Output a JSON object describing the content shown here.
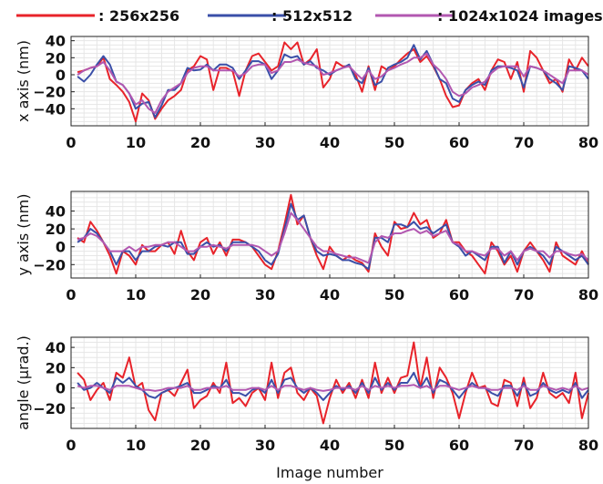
{
  "chart_data": [
    {
      "type": "line",
      "ylabel": "x axis (nm)",
      "xlim": [
        0,
        80
      ],
      "ylim": [
        -60,
        45
      ],
      "yticks": [
        -40,
        -20,
        0,
        20,
        40
      ],
      "xticks": [
        0,
        10,
        20,
        30,
        40,
        50,
        60,
        70,
        80
      ],
      "grid": true,
      "x": [
        1,
        2,
        3,
        4,
        5,
        6,
        7,
        8,
        9,
        10,
        11,
        12,
        13,
        14,
        15,
        16,
        17,
        18,
        19,
        20,
        21,
        22,
        23,
        24,
        25,
        26,
        27,
        28,
        29,
        30,
        31,
        32,
        33,
        34,
        35,
        36,
        37,
        38,
        39,
        40,
        41,
        42,
        43,
        44,
        45,
        46,
        47,
        48,
        49,
        50,
        51,
        52,
        53,
        54,
        55,
        56,
        57,
        58,
        59,
        60,
        61,
        62,
        63,
        64,
        65,
        66,
        67,
        68,
        69,
        70,
        71,
        72,
        73,
        74,
        75,
        76,
        77,
        78,
        79,
        80
      ],
      "series": [
        {
          "name": ": 256x256",
          "color": "#e8232a",
          "values": [
            3,
            5,
            8,
            10,
            20,
            -5,
            -12,
            -20,
            -32,
            -55,
            -22,
            -30,
            -52,
            -40,
            -30,
            -25,
            -18,
            5,
            10,
            22,
            18,
            -18,
            8,
            8,
            4,
            -25,
            5,
            22,
            25,
            15,
            5,
            10,
            38,
            30,
            38,
            12,
            18,
            30,
            -15,
            -5,
            15,
            10,
            10,
            0,
            -20,
            10,
            -18,
            10,
            5,
            10,
            18,
            25,
            30,
            15,
            22,
            10,
            -5,
            -25,
            -38,
            -36,
            -18,
            -10,
            -5,
            -18,
            5,
            18,
            15,
            -5,
            15,
            -20,
            28,
            20,
            5,
            -10,
            -5,
            -20,
            18,
            5,
            20,
            10
          ]
        },
        {
          "name": ": 512x512",
          "color": "#3a4fa8",
          "values": [
            -2,
            -8,
            0,
            12,
            22,
            12,
            -8,
            -12,
            -22,
            -40,
            -34,
            -32,
            -50,
            -36,
            -18,
            -18,
            -10,
            8,
            5,
            6,
            12,
            5,
            12,
            12,
            8,
            -5,
            5,
            16,
            16,
            12,
            -5,
            5,
            24,
            20,
            22,
            12,
            16,
            8,
            5,
            0,
            5,
            8,
            12,
            -5,
            -10,
            8,
            -12,
            -8,
            8,
            12,
            15,
            20,
            35,
            18,
            28,
            12,
            -5,
            -10,
            -28,
            -32,
            -18,
            -12,
            -8,
            -12,
            5,
            10,
            10,
            8,
            5,
            -15,
            10,
            8,
            5,
            -5,
            -10,
            -18,
            10,
            8,
            5,
            -5
          ]
        },
        {
          "name": ": 1024x1024 images",
          "color": "#b257b0",
          "values": [
            0,
            5,
            8,
            10,
            15,
            5,
            -8,
            -12,
            -22,
            -35,
            -30,
            -40,
            -45,
            -30,
            -20,
            -15,
            -10,
            2,
            8,
            10,
            10,
            5,
            5,
            5,
            5,
            -2,
            2,
            10,
            12,
            12,
            2,
            5,
            15,
            15,
            18,
            14,
            12,
            10,
            0,
            2,
            5,
            8,
            10,
            2,
            -5,
            5,
            -5,
            -2,
            5,
            8,
            12,
            15,
            20,
            20,
            25,
            12,
            5,
            -5,
            -20,
            -25,
            -22,
            -15,
            -12,
            -8,
            2,
            8,
            10,
            10,
            10,
            -2,
            10,
            8,
            5,
            0,
            -5,
            -10,
            5,
            5,
            5,
            0
          ]
        }
      ]
    },
    {
      "type": "line",
      "ylabel": "y axis (nm)",
      "xlim": [
        0,
        80
      ],
      "ylim": [
        -35,
        62
      ],
      "yticks": [
        -20,
        0,
        20,
        40
      ],
      "xticks": [
        0,
        10,
        20,
        30,
        40,
        50,
        60,
        70,
        80
      ],
      "grid": true,
      "x": [
        1,
        2,
        3,
        4,
        5,
        6,
        7,
        8,
        9,
        10,
        11,
        12,
        13,
        14,
        15,
        16,
        17,
        18,
        19,
        20,
        21,
        22,
        23,
        24,
        25,
        26,
        27,
        28,
        29,
        30,
        31,
        32,
        33,
        34,
        35,
        36,
        37,
        38,
        39,
        40,
        41,
        42,
        43,
        44,
        45,
        46,
        47,
        48,
        49,
        50,
        51,
        52,
        53,
        54,
        55,
        56,
        57,
        58,
        59,
        60,
        61,
        62,
        63,
        64,
        65,
        66,
        67,
        68,
        69,
        70,
        71,
        72,
        73,
        74,
        75,
        76,
        77,
        78,
        79,
        80
      ],
      "series": [
        {
          "name": ": 256x256",
          "color": "#e8232a",
          "values": [
            10,
            5,
            28,
            18,
            5,
            -10,
            -30,
            -5,
            -10,
            -20,
            2,
            -5,
            -5,
            2,
            5,
            -8,
            18,
            -5,
            -15,
            5,
            10,
            -8,
            5,
            -10,
            8,
            8,
            5,
            0,
            -10,
            -20,
            -25,
            -5,
            25,
            58,
            25,
            35,
            10,
            -10,
            -25,
            0,
            -10,
            -15,
            -10,
            -15,
            -18,
            -28,
            15,
            0,
            -10,
            28,
            20,
            22,
            38,
            25,
            30,
            10,
            15,
            30,
            5,
            5,
            -5,
            -10,
            -20,
            -30,
            5,
            -5,
            -20,
            -10,
            -28,
            -5,
            5,
            -5,
            -15,
            -28,
            5,
            -10,
            -15,
            -20,
            -5,
            -20
          ]
        },
        {
          "name": ": 512x512",
          "color": "#3a4fa8",
          "values": [
            5,
            10,
            20,
            15,
            5,
            -5,
            -20,
            -5,
            -5,
            -15,
            -5,
            -5,
            0,
            2,
            0,
            5,
            5,
            -8,
            -8,
            0,
            5,
            0,
            2,
            -5,
            5,
            5,
            5,
            0,
            -5,
            -15,
            -20,
            -8,
            20,
            48,
            30,
            35,
            10,
            -5,
            -10,
            -8,
            -10,
            -15,
            -15,
            -18,
            -20,
            -25,
            10,
            10,
            5,
            25,
            25,
            22,
            28,
            20,
            22,
            15,
            20,
            25,
            5,
            0,
            -10,
            -5,
            -10,
            -15,
            0,
            0,
            -18,
            -5,
            -20,
            -5,
            0,
            -5,
            -10,
            -20,
            0,
            -5,
            -10,
            -15,
            -10,
            -20
          ]
        },
        {
          "name": ": 1024x1024 images",
          "color": "#b257b0",
          "values": [
            8,
            10,
            15,
            12,
            5,
            -5,
            -5,
            -5,
            0,
            -5,
            0,
            0,
            2,
            2,
            5,
            5,
            0,
            -5,
            -5,
            0,
            0,
            2,
            0,
            -2,
            2,
            2,
            2,
            2,
            0,
            -5,
            -10,
            -5,
            15,
            38,
            30,
            20,
            10,
            0,
            -5,
            -5,
            -8,
            -10,
            -12,
            -12,
            -15,
            -18,
            5,
            12,
            10,
            15,
            15,
            18,
            20,
            15,
            18,
            12,
            15,
            18,
            5,
            2,
            -5,
            -5,
            -8,
            -10,
            -2,
            -2,
            -10,
            -5,
            -15,
            -5,
            -2,
            -5,
            -5,
            -12,
            -5,
            -5,
            -8,
            -10,
            -8,
            -15
          ]
        }
      ]
    },
    {
      "type": "line",
      "ylabel": "angle (µrad.)",
      "xlabel": "Image number",
      "xlim": [
        0,
        80
      ],
      "ylim": [
        -40,
        50
      ],
      "yticks": [
        -20,
        0,
        20,
        40
      ],
      "xticks": [
        0,
        10,
        20,
        30,
        40,
        50,
        60,
        70,
        80
      ],
      "grid": true,
      "x": [
        1,
        2,
        3,
        4,
        5,
        6,
        7,
        8,
        9,
        10,
        11,
        12,
        13,
        14,
        15,
        16,
        17,
        18,
        19,
        20,
        21,
        22,
        23,
        24,
        25,
        26,
        27,
        28,
        29,
        30,
        31,
        32,
        33,
        34,
        35,
        36,
        37,
        38,
        39,
        40,
        41,
        42,
        43,
        44,
        45,
        46,
        47,
        48,
        49,
        50,
        51,
        52,
        53,
        54,
        55,
        56,
        57,
        58,
        59,
        60,
        61,
        62,
        63,
        64,
        65,
        66,
        67,
        68,
        69,
        70,
        71,
        72,
        73,
        74,
        75,
        76,
        77,
        78,
        79,
        80
      ],
      "series": [
        {
          "name": ": 256x256",
          "color": "#e8232a",
          "values": [
            15,
            8,
            -12,
            -2,
            5,
            -12,
            15,
            10,
            30,
            0,
            5,
            -22,
            -32,
            -5,
            -2,
            -8,
            5,
            18,
            -20,
            -12,
            -8,
            5,
            -5,
            25,
            -15,
            -10,
            -18,
            -5,
            0,
            -12,
            25,
            -10,
            15,
            20,
            -5,
            -12,
            0,
            -8,
            -35,
            -10,
            8,
            -5,
            5,
            -10,
            8,
            -10,
            25,
            -5,
            10,
            -5,
            10,
            12,
            45,
            0,
            30,
            -10,
            20,
            10,
            -5,
            -30,
            -5,
            15,
            0,
            2,
            -15,
            -18,
            8,
            5,
            -18,
            10,
            -20,
            -10,
            15,
            -5,
            -10,
            -5,
            -15,
            15,
            -30,
            -5
          ]
        },
        {
          "name": ": 512x512",
          "color": "#3a4fa8",
          "values": [
            5,
            -2,
            0,
            5,
            0,
            -5,
            10,
            5,
            10,
            2,
            -2,
            -8,
            -10,
            -5,
            -2,
            0,
            2,
            5,
            -5,
            -5,
            -2,
            2,
            0,
            8,
            -5,
            -5,
            -8,
            -2,
            0,
            -5,
            8,
            -5,
            8,
            10,
            0,
            -5,
            0,
            -5,
            -12,
            -5,
            2,
            -2,
            2,
            -5,
            5,
            -5,
            10,
            -2,
            5,
            -2,
            5,
            5,
            15,
            0,
            10,
            -5,
            8,
            5,
            -2,
            -10,
            -2,
            5,
            0,
            0,
            -5,
            -8,
            2,
            2,
            -8,
            5,
            -8,
            -5,
            5,
            -2,
            -5,
            -2,
            -5,
            5,
            -10,
            -2
          ]
        },
        {
          "name": ": 1024x1024 images",
          "color": "#b257b0",
          "values": [
            2,
            0,
            2,
            2,
            0,
            -2,
            2,
            2,
            2,
            0,
            -2,
            -2,
            -3,
            -2,
            0,
            0,
            0,
            2,
            -2,
            -2,
            0,
            0,
            0,
            2,
            -2,
            -2,
            -2,
            0,
            0,
            -2,
            2,
            -2,
            2,
            2,
            0,
            -2,
            0,
            -2,
            -3,
            -2,
            0,
            0,
            0,
            -2,
            2,
            -2,
            2,
            0,
            2,
            0,
            2,
            2,
            3,
            0,
            2,
            -2,
            2,
            2,
            0,
            -2,
            0,
            2,
            0,
            0,
            -2,
            -2,
            0,
            0,
            -2,
            2,
            -2,
            -2,
            2,
            0,
            -2,
            0,
            -2,
            2,
            -2,
            0
          ]
        }
      ]
    }
  ],
  "legend": {
    "placement": "top",
    "entries": [
      {
        "label": ": 256x256",
        "color": "#e8232a"
      },
      {
        "label": ": 512x512",
        "color": "#3a4fa8"
      },
      {
        "label": ": 1024x1024 images",
        "color": "#b257b0"
      }
    ]
  }
}
